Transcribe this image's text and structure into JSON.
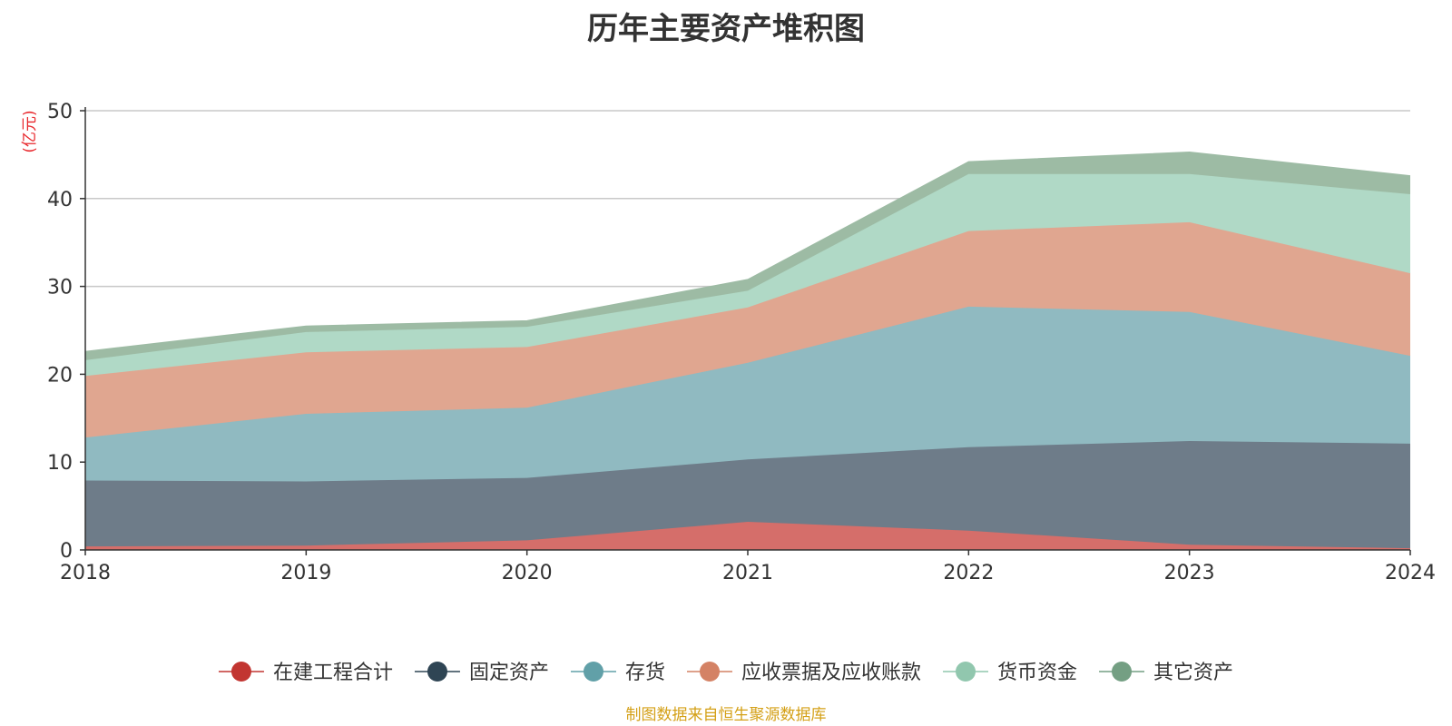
{
  "chart_data": {
    "type": "area",
    "stacked": true,
    "title": "历年主要资产堆积图",
    "unit_label": "(亿元)",
    "x": [
      "2018",
      "2019",
      "2020",
      "2021",
      "2022",
      "2023",
      "2024"
    ],
    "ylim": [
      0,
      50
    ],
    "yticks": [
      0,
      10,
      20,
      30,
      40,
      50
    ],
    "grid": true,
    "legend_position": "bottom",
    "series": [
      {
        "name": "在建工程合计",
        "color": "#c23531",
        "fill": "#d56e6a",
        "values": [
          0.4,
          0.5,
          1.1,
          3.2,
          2.2,
          0.6,
          0.2
        ]
      },
      {
        "name": "固定资产",
        "color": "#2f4554",
        "fill": "#6e7c89",
        "values": [
          7.5,
          7.3,
          7.1,
          7.1,
          9.5,
          11.8,
          11.9
        ]
      },
      {
        "name": "存货",
        "color": "#61a0a8",
        "fill": "#90bac1",
        "values": [
          4.9,
          7.7,
          8.0,
          11.0,
          16.0,
          14.7,
          10.0
        ]
      },
      {
        "name": "应收票据及应收账款",
        "color": "#d48265",
        "fill": "#e0a690",
        "values": [
          7.0,
          7.0,
          6.9,
          6.3,
          8.6,
          10.2,
          9.4
        ]
      },
      {
        "name": "货币资金",
        "color": "#91c7ae",
        "fill": "#b0d9c6",
        "values": [
          1.8,
          2.3,
          2.3,
          1.9,
          6.5,
          5.5,
          9.0
        ]
      },
      {
        "name": "其它资产",
        "color": "#749f83",
        "fill": "#9dbba4",
        "values": [
          1.0,
          0.7,
          0.7,
          1.3,
          1.4,
          2.5,
          2.1
        ]
      }
    ],
    "source": "制图数据来自恒生聚源数据库"
  }
}
